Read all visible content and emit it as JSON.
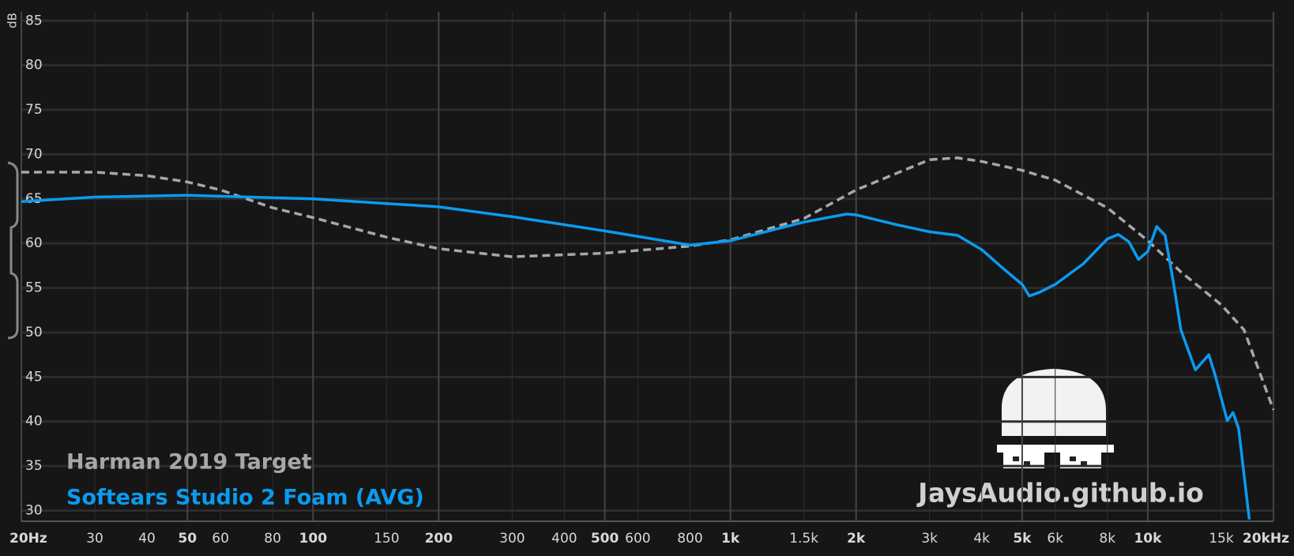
{
  "chart_data": {
    "type": "line",
    "y_label": "dB",
    "annotation": "JaysAudio.github.io",
    "xscale": "log",
    "grid": true,
    "xlim": [
      20,
      20000
    ],
    "ylim": [
      28.8,
      86
    ],
    "yticks": [
      30,
      35,
      40,
      45,
      50,
      55,
      60,
      65,
      70,
      75,
      80,
      85
    ],
    "xticks": [
      {
        "value": 20,
        "label": "20Hz"
      },
      30,
      40,
      50,
      60,
      80,
      100,
      150,
      200,
      300,
      400,
      500,
      600,
      800,
      {
        "value": 1000,
        "label": "1k"
      },
      {
        "value": 1500,
        "label": "1.5k"
      },
      {
        "value": 2000,
        "label": "2k"
      },
      {
        "value": 3000,
        "label": "3k"
      },
      {
        "value": 4000,
        "label": "4k"
      },
      {
        "value": 5000,
        "label": "5k"
      },
      {
        "value": 6000,
        "label": "6k"
      },
      {
        "value": 8000,
        "label": "8k"
      },
      {
        "value": 10000,
        "label": "10k"
      },
      {
        "value": 15000,
        "label": "15k"
      },
      {
        "value": 20000,
        "label": "20kHz"
      }
    ],
    "series": [
      {
        "name": "Harman 2019 Target",
        "color": "#a4a7ab",
        "dashed": true,
        "x": [
          20,
          30,
          40,
          50,
          60,
          80,
          100,
          150,
          200,
          300,
          500,
          800,
          1000,
          1500,
          2000,
          3000,
          3500,
          4000,
          5000,
          6000,
          8000,
          10000,
          12000,
          15000,
          17000,
          20000
        ],
        "values": [
          68,
          68,
          67.6,
          66.9,
          66,
          64,
          62.9,
          60.7,
          59.4,
          58.5,
          58.9,
          59.7,
          60.4,
          62.8,
          66,
          69.4,
          69.6,
          69.2,
          68.2,
          67.1,
          64,
          60.3,
          56.8,
          53.1,
          50.3,
          41.3
        ]
      },
      {
        "name": "Softears Studio 2 Foam (AVG)",
        "color": "#0a9bef",
        "dashed": false,
        "x": [
          20,
          30,
          50,
          100,
          200,
          300,
          500,
          800,
          1000,
          1500,
          1900,
          2000,
          2500,
          3000,
          3500,
          4000,
          4500,
          5000,
          5200,
          5500,
          6000,
          7000,
          8000,
          8500,
          9000,
          9500,
          10000,
          10500,
          11000,
          11500,
          12000,
          13000,
          14000,
          14500,
          15500,
          16000,
          16500,
          17500
        ],
        "values": [
          64.7,
          65.2,
          65.4,
          65,
          64.1,
          63,
          61.4,
          59.8,
          60.3,
          62.4,
          63.3,
          63.2,
          62.1,
          61.3,
          60.9,
          59.3,
          57.2,
          55.4,
          54.1,
          54.5,
          55.4,
          57.7,
          60.5,
          61,
          60.2,
          58.2,
          59.1,
          61.9,
          60.9,
          55.8,
          50.3,
          45.8,
          47.5,
          45.2,
          40.1,
          41,
          39.2,
          29
        ]
      }
    ]
  }
}
